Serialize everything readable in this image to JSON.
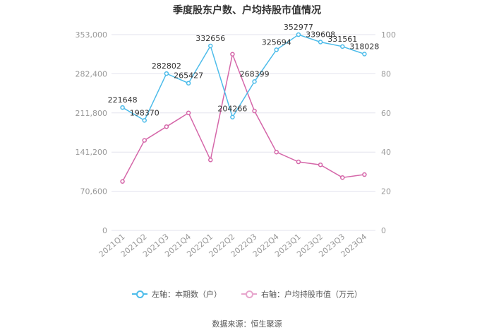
{
  "title": "季度股东户数、户均持股市值情况",
  "source": "数据来源：恒生聚源",
  "colors": {
    "left_series": "#4dbcea",
    "right_series": "#d567a9",
    "grid": "#e3e3ee",
    "axis_text": "#999999",
    "label_text": "#333333"
  },
  "legend": {
    "left_label": "左轴：本期数（户）",
    "right_label": "右轴：户均持股市值（万元）"
  },
  "chart_data": {
    "type": "line",
    "categories": [
      "2021Q1",
      "2021Q2",
      "2021Q3",
      "2021Q4",
      "2022Q1",
      "2022Q2",
      "2022Q3",
      "2022Q4",
      "2023Q1",
      "2023Q2",
      "2023Q3",
      "2023Q4"
    ],
    "left_axis": {
      "ticks": [
        "0",
        "70,600",
        "141,200",
        "211,800",
        "282,400",
        "353,000"
      ],
      "min": 0,
      "max": 353000
    },
    "right_axis": {
      "ticks": [
        "0",
        "20",
        "40",
        "60",
        "80",
        "100"
      ],
      "min": 0,
      "max": 100
    },
    "series": [
      {
        "name": "左轴：本期数（户）",
        "axis": "left",
        "values": [
          221648,
          198370,
          282802,
          265427,
          332656,
          204266,
          268399,
          325694,
          352977,
          339608,
          331561,
          318028
        ],
        "labels": [
          "221648",
          "198370",
          "282802",
          "265427",
          "332656",
          "204266",
          "268399",
          "325694",
          "352977",
          "339608",
          "331561",
          "318028"
        ]
      },
      {
        "name": "右轴：户均持股市值（万元）",
        "axis": "right",
        "values": [
          25,
          46,
          53,
          60,
          36,
          90,
          61,
          40,
          35,
          33.5,
          27,
          28.5
        ]
      }
    ]
  }
}
